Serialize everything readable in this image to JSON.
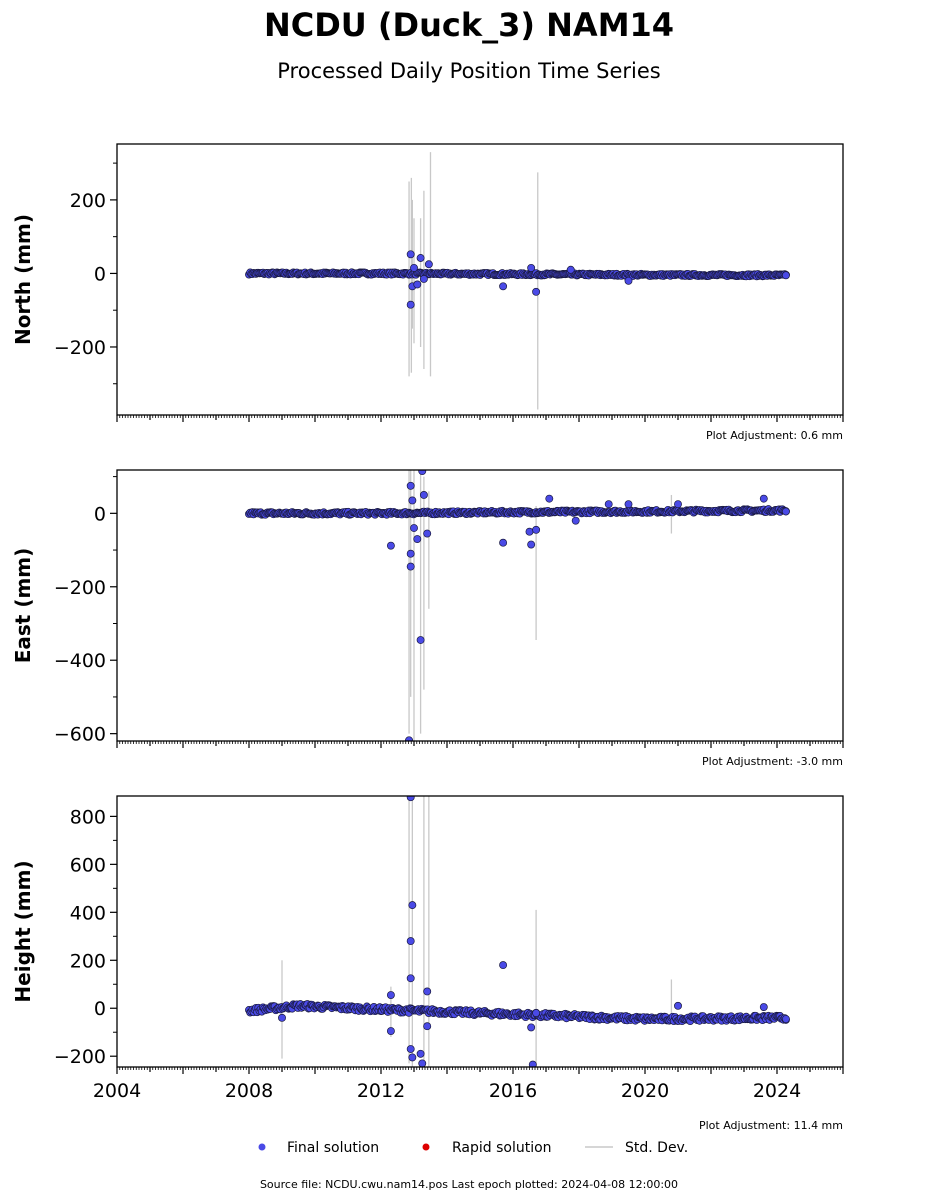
{
  "title": "NCDU (Duck_3) NAM14",
  "subtitle": "Processed Daily Position Time Series",
  "footer": "Source file: NCDU.cwu.nam14.pos  Last epoch plotted: 2024-04-08 12:00:00",
  "colors": {
    "final": "#4a4ae6",
    "rapid": "#dd0000",
    "stddev": "#c8c8c8",
    "edge": "#1a1a40"
  },
  "legend": [
    {
      "key": "final",
      "label": "Final solution"
    },
    {
      "key": "rapid",
      "label": "Rapid solution"
    },
    {
      "key": "stddev",
      "label": "Std. Dev."
    }
  ],
  "chart_data": [
    {
      "type": "scatter",
      "ylabel": "North (mm)",
      "adjustment": "Plot Adjustment: 0.6 mm",
      "xlim": [
        2004,
        2026
      ],
      "ylim": [
        -385,
        352
      ],
      "yticks": [
        -200,
        0,
        200
      ],
      "xticks": [],
      "series_trend": [
        [
          2008.0,
          0
        ],
        [
          2012.0,
          0
        ],
        [
          2016.0,
          -2
        ],
        [
          2020.0,
          -4
        ],
        [
          2024.27,
          -5
        ]
      ],
      "band_noise": 3,
      "outliers": [
        [
          2012.9,
          -85
        ],
        [
          2012.9,
          52
        ],
        [
          2012.95,
          -35
        ],
        [
          2013.0,
          15
        ],
        [
          2013.2,
          42
        ],
        [
          2013.3,
          -15
        ],
        [
          2013.45,
          25
        ],
        [
          2013.1,
          -30
        ],
        [
          2015.7,
          -35
        ],
        [
          2016.55,
          15
        ],
        [
          2016.7,
          -50
        ],
        [
          2017.75,
          10
        ],
        [
          2019.5,
          -20
        ],
        [
          2024.27,
          -5
        ]
      ],
      "errorbars": [
        [
          2012.85,
          -280,
          250
        ],
        [
          2012.92,
          -270,
          260
        ],
        [
          2013.0,
          -190,
          150
        ],
        [
          2013.3,
          -260,
          225
        ],
        [
          2013.5,
          -280,
          330
        ],
        [
          2016.75,
          -370,
          275
        ],
        [
          2012.95,
          -150,
          200
        ],
        [
          2013.2,
          -200,
          150
        ]
      ]
    },
    {
      "type": "scatter",
      "ylabel": "East (mm)",
      "adjustment": "Plot Adjustment: -3.0 mm",
      "xlim": [
        2004,
        2026
      ],
      "ylim": [
        -620,
        118
      ],
      "yticks": [
        -600,
        -400,
        -200,
        0
      ],
      "xticks": [],
      "series_trend": [
        [
          2008.0,
          0
        ],
        [
          2012.0,
          0
        ],
        [
          2016.0,
          3
        ],
        [
          2020.0,
          5
        ],
        [
          2024.27,
          8
        ]
      ],
      "band_noise": 4,
      "outliers": [
        [
          2012.3,
          -88
        ],
        [
          2012.9,
          -145
        ],
        [
          2012.9,
          -110
        ],
        [
          2012.85,
          -618
        ],
        [
          2012.9,
          75
        ],
        [
          2012.95,
          35
        ],
        [
          2013.0,
          -40
        ],
        [
          2013.2,
          -345
        ],
        [
          2013.25,
          115
        ],
        [
          2013.3,
          50
        ],
        [
          2013.4,
          -55
        ],
        [
          2013.1,
          -70
        ],
        [
          2015.7,
          -80
        ],
        [
          2016.5,
          -50
        ],
        [
          2016.55,
          -85
        ],
        [
          2016.7,
          -45
        ],
        [
          2017.1,
          40
        ],
        [
          2017.9,
          -20
        ],
        [
          2018.9,
          25
        ],
        [
          2019.5,
          25
        ],
        [
          2021.0,
          25
        ],
        [
          2023.6,
          40
        ],
        [
          2024.27,
          5
        ]
      ],
      "errorbars": [
        [
          2012.85,
          -600,
          118
        ],
        [
          2012.9,
          -500,
          118
        ],
        [
          2013.0,
          -620,
          118
        ],
        [
          2013.2,
          -600,
          118
        ],
        [
          2013.3,
          -480,
          100
        ],
        [
          2013.45,
          -260,
          60
        ],
        [
          2016.7,
          -345,
          20
        ],
        [
          2020.8,
          -55,
          50
        ]
      ]
    },
    {
      "type": "scatter",
      "ylabel": "Height (mm)",
      "adjustment": "Plot Adjustment: 11.4 mm",
      "xlim": [
        2004,
        2026
      ],
      "ylim": [
        -245,
        885
      ],
      "yticks": [
        -200,
        0,
        200,
        400,
        600,
        800
      ],
      "xticks": [
        2004,
        2008,
        2012,
        2016,
        2020,
        2024
      ],
      "series_trend": [
        [
          2008.0,
          -10
        ],
        [
          2009.5,
          10
        ],
        [
          2012.0,
          -5
        ],
        [
          2016.0,
          -25
        ],
        [
          2020.0,
          -45
        ],
        [
          2024.27,
          -40
        ]
      ],
      "band_noise": 10,
      "outliers": [
        [
          2012.3,
          55
        ],
        [
          2012.3,
          -95
        ],
        [
          2012.9,
          880
        ],
        [
          2012.95,
          430
        ],
        [
          2012.9,
          280
        ],
        [
          2012.9,
          125
        ],
        [
          2012.9,
          -170
        ],
        [
          2012.95,
          -205
        ],
        [
          2013.2,
          -190
        ],
        [
          2013.25,
          -230
        ],
        [
          2013.4,
          70
        ],
        [
          2013.4,
          -75
        ],
        [
          2015.7,
          180
        ],
        [
          2016.55,
          -80
        ],
        [
          2016.6,
          -235
        ],
        [
          2016.7,
          -20
        ],
        [
          2009.0,
          -40
        ],
        [
          2021.0,
          10
        ],
        [
          2023.6,
          5
        ],
        [
          2024.27,
          -45
        ]
      ],
      "errorbars": [
        [
          2009.0,
          -210,
          200
        ],
        [
          2012.85,
          -230,
          885
        ],
        [
          2012.95,
          -245,
          885
        ],
        [
          2013.3,
          -245,
          885
        ],
        [
          2013.45,
          -245,
          885
        ],
        [
          2016.7,
          -245,
          410
        ],
        [
          2020.8,
          -40,
          120
        ],
        [
          2012.3,
          -120,
          90
        ]
      ]
    }
  ]
}
